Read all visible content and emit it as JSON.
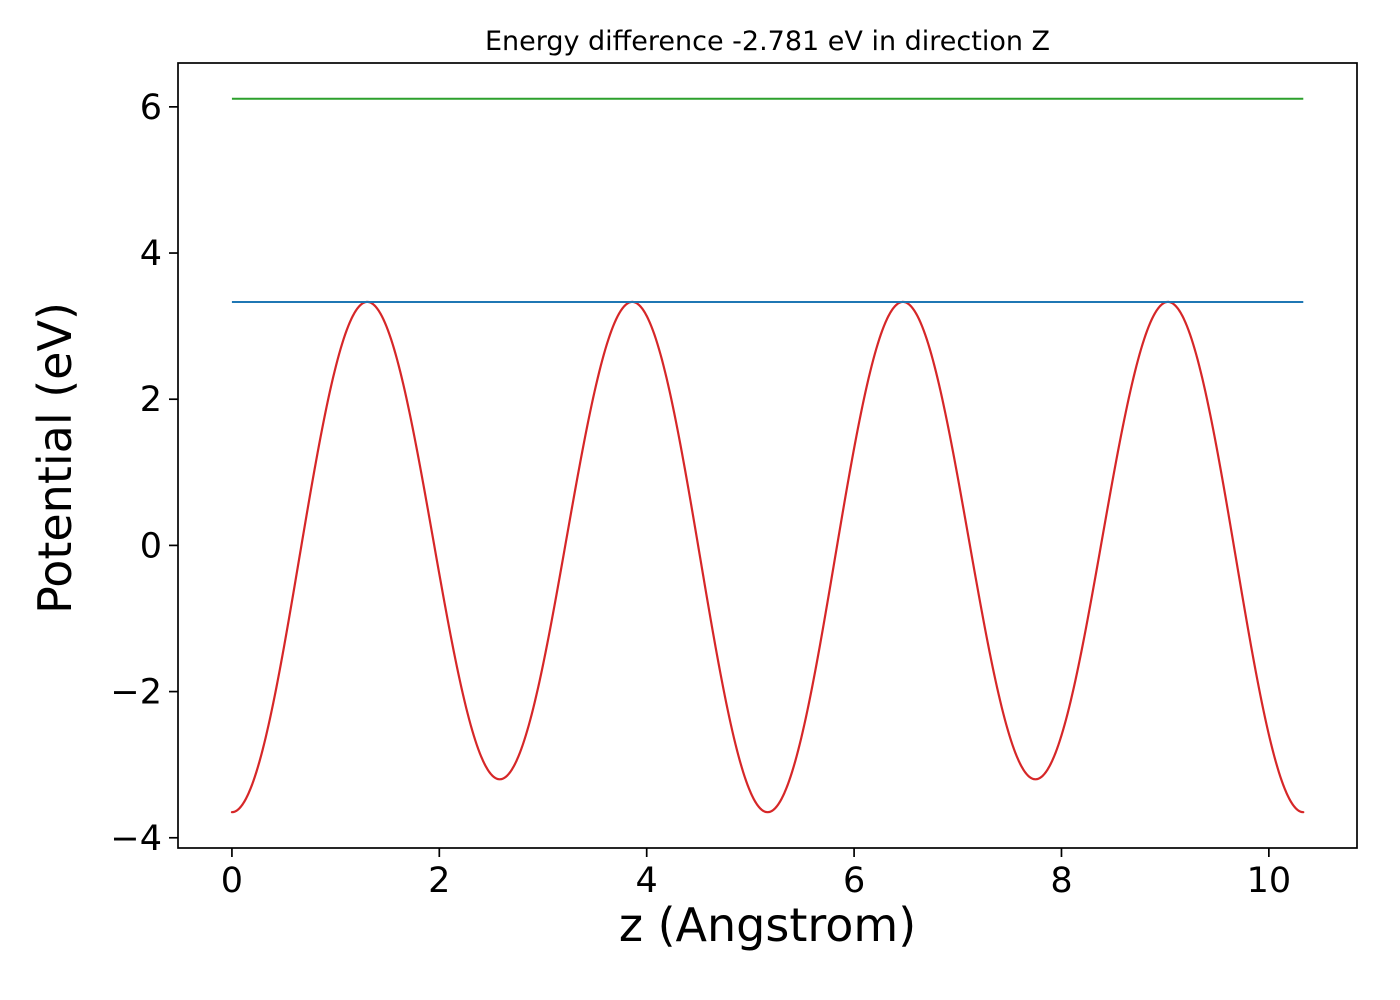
{
  "title": "Energy difference -2.781 eV in direction Z",
  "chart_data": {
    "type": "line",
    "title": "Energy difference -2.781 eV in direction Z",
    "xlabel": "z (Angstrom)",
    "ylabel": "Potential (eV)",
    "xlim": [
      -0.52,
      10.85
    ],
    "ylim": [
      -4.14,
      6.6
    ],
    "x_ticks": [
      0,
      2,
      4,
      6,
      8,
      10
    ],
    "y_ticks": [
      -4,
      -2,
      0,
      2,
      4,
      6
    ],
    "grid": false,
    "legend": "none",
    "energy_difference_ev": -2.781,
    "series": [
      {
        "id": "planar-average-potential-curve",
        "color": "#d62728",
        "style": "curve",
        "x_start": 0,
        "x_end": 10.332,
        "model": {
          "offset": -0.0475,
          "terms": [
            {
              "amp": -3.3775,
              "period": 2.583
            },
            {
              "amp": -0.225,
              "period": 5.166
            }
          ]
        },
        "key_points": {
          "peaks_x": [
            1.29,
            3.87,
            6.46,
            9.04
          ],
          "peaks_y": [
            3.33,
            3.33,
            3.33,
            3.33
          ],
          "minima_x": [
            0.0,
            2.58,
            5.17,
            7.75,
            10.33
          ],
          "minima_y": [
            -3.65,
            -3.2,
            -3.65,
            -3.2,
            -3.65
          ]
        }
      },
      {
        "id": "lower-reference-level-line",
        "color": "#1f77b4",
        "style": "hline",
        "y": 3.33,
        "x_start": 0,
        "x_end": 10.332
      },
      {
        "id": "upper-reference-level-line",
        "color": "#2ca02c",
        "style": "hline",
        "y": 6.111,
        "x_start": 0,
        "x_end": 10.332
      }
    ]
  }
}
